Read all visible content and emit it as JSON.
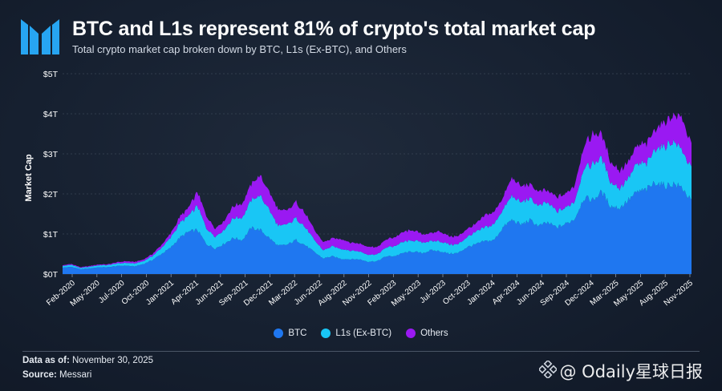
{
  "header": {
    "title": "BTC and L1s represent 81% of crypto's total market cap",
    "subtitle": "Total crypto market cap broken down by BTC, L1s (Ex-BTC), and Others"
  },
  "footer": {
    "data_as_of_label": "Data as of:",
    "data_as_of_value": "November 30, 2025",
    "source_label": "Source:",
    "source_value": "Messari"
  },
  "watermark": "@ Odaily星球日报",
  "colors": {
    "btc": "#1f77f0",
    "l1s": "#19c6f5",
    "others": "#9a19f2",
    "axis_text": "#ffffff",
    "gridline": "#3a4556"
  },
  "chart_data": {
    "type": "area",
    "stacked": true,
    "ylabel": "Market Cap",
    "xlabel": "",
    "ylim": [
      0,
      5
    ],
    "y_ticks": [
      "$0T",
      "$1T",
      "$2T",
      "$3T",
      "$4T",
      "$5T"
    ],
    "x_ticks": [
      "Feb-2020",
      "May-2020",
      "Jul-2020",
      "Oct-2020",
      "Jan-2021",
      "Apr-2021",
      "Jun-2021",
      "Sep-2021",
      "Dec-2021",
      "Mar-2022",
      "Jun-2022",
      "Aug-2022",
      "Nov-2022",
      "Feb-2023",
      "May-2023",
      "Jul-2023",
      "Oct-2023",
      "Jan-2024",
      "Apr-2024",
      "Jun-2024",
      "Sep-2024",
      "Dec-2024",
      "Mar-2025",
      "May-2025",
      "Aug-2025",
      "Nov-2025"
    ],
    "legend": {
      "placement": "bottom",
      "entries": [
        "BTC",
        "L1s (Ex-BTC)",
        "Others"
      ]
    },
    "x": [
      "2020-01",
      "2020-02",
      "2020-03",
      "2020-04",
      "2020-05",
      "2020-06",
      "2020-07",
      "2020-08",
      "2020-09",
      "2020-10",
      "2020-11",
      "2020-12",
      "2021-01",
      "2021-02",
      "2021-03",
      "2021-04",
      "2021-05",
      "2021-06",
      "2021-07",
      "2021-08",
      "2021-09",
      "2021-10",
      "2021-11",
      "2021-12",
      "2022-01",
      "2022-02",
      "2022-03",
      "2022-04",
      "2022-05",
      "2022-06",
      "2022-07",
      "2022-08",
      "2022-09",
      "2022-10",
      "2022-11",
      "2022-12",
      "2023-01",
      "2023-02",
      "2023-03",
      "2023-04",
      "2023-05",
      "2023-06",
      "2023-07",
      "2023-08",
      "2023-09",
      "2023-10",
      "2023-11",
      "2023-12",
      "2024-01",
      "2024-02",
      "2024-03",
      "2024-04",
      "2024-05",
      "2024-06",
      "2024-07",
      "2024-08",
      "2024-09",
      "2024-10",
      "2024-11",
      "2024-12",
      "2025-01",
      "2025-02",
      "2025-03",
      "2025-04",
      "2025-05",
      "2025-06",
      "2025-07",
      "2025-08",
      "2025-09",
      "2025-10",
      "2025-11"
    ],
    "series": [
      {
        "name": "BTC",
        "values": [
          0.16,
          0.18,
          0.12,
          0.14,
          0.17,
          0.17,
          0.2,
          0.21,
          0.19,
          0.25,
          0.35,
          0.5,
          0.65,
          0.9,
          1.05,
          1.1,
          0.75,
          0.64,
          0.76,
          0.9,
          0.85,
          1.15,
          1.1,
          0.9,
          0.7,
          0.73,
          0.85,
          0.72,
          0.55,
          0.39,
          0.44,
          0.38,
          0.37,
          0.37,
          0.31,
          0.32,
          0.44,
          0.45,
          0.53,
          0.56,
          0.52,
          0.59,
          0.57,
          0.51,
          0.52,
          0.67,
          0.74,
          0.82,
          0.84,
          1.16,
          1.35,
          1.23,
          1.34,
          1.2,
          1.28,
          1.16,
          1.25,
          1.38,
          1.9,
          1.85,
          2.05,
          1.7,
          1.65,
          1.85,
          2.05,
          2.1,
          2.3,
          2.2,
          2.25,
          2.15,
          1.8
        ]
      },
      {
        "name": "L1s (Ex-BTC)",
        "values": [
          0.04,
          0.05,
          0.03,
          0.04,
          0.05,
          0.05,
          0.06,
          0.07,
          0.07,
          0.07,
          0.1,
          0.15,
          0.25,
          0.35,
          0.4,
          0.6,
          0.4,
          0.3,
          0.35,
          0.5,
          0.55,
          0.7,
          0.85,
          0.7,
          0.5,
          0.5,
          0.55,
          0.45,
          0.3,
          0.2,
          0.25,
          0.25,
          0.22,
          0.2,
          0.17,
          0.17,
          0.22,
          0.25,
          0.27,
          0.28,
          0.27,
          0.23,
          0.25,
          0.23,
          0.22,
          0.25,
          0.3,
          0.35,
          0.4,
          0.45,
          0.6,
          0.55,
          0.55,
          0.5,
          0.5,
          0.4,
          0.4,
          0.45,
          0.75,
          0.9,
          0.85,
          0.6,
          0.5,
          0.55,
          0.7,
          0.65,
          0.85,
          1.0,
          1.05,
          0.95,
          0.8
        ]
      },
      {
        "name": "Others",
        "values": [
          0.02,
          0.02,
          0.02,
          0.02,
          0.02,
          0.02,
          0.03,
          0.04,
          0.04,
          0.04,
          0.05,
          0.07,
          0.1,
          0.15,
          0.2,
          0.35,
          0.3,
          0.2,
          0.22,
          0.3,
          0.35,
          0.4,
          0.5,
          0.45,
          0.4,
          0.35,
          0.4,
          0.35,
          0.25,
          0.2,
          0.2,
          0.25,
          0.2,
          0.2,
          0.2,
          0.18,
          0.2,
          0.22,
          0.25,
          0.25,
          0.2,
          0.2,
          0.25,
          0.2,
          0.2,
          0.2,
          0.2,
          0.3,
          0.3,
          0.3,
          0.45,
          0.4,
          0.35,
          0.35,
          0.3,
          0.35,
          0.35,
          0.4,
          0.55,
          0.75,
          0.6,
          0.5,
          0.45,
          0.4,
          0.45,
          0.5,
          0.5,
          0.6,
          0.65,
          0.8,
          0.6
        ]
      }
    ]
  }
}
